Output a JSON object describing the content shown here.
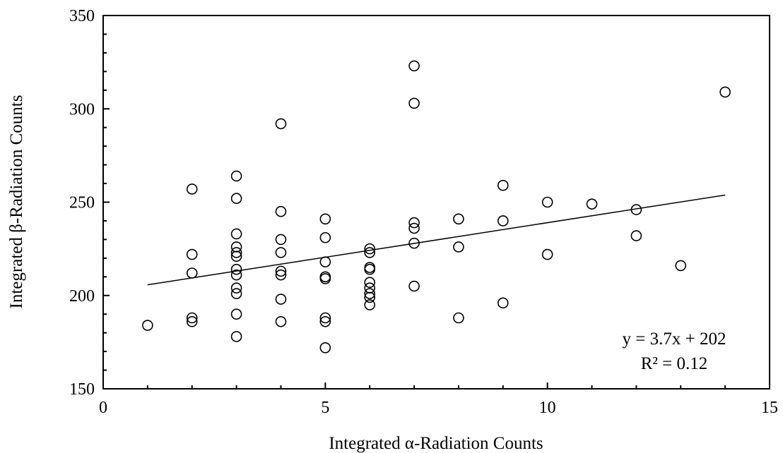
{
  "chart_data": {
    "type": "scatter",
    "title": "",
    "xlabel": "Integrated α-Radiation Counts",
    "ylabel": "Integrated β-Radiation Counts",
    "xlim": [
      0,
      15
    ],
    "ylim": [
      150,
      350
    ],
    "x_ticks": [
      "0",
      "5",
      "10",
      "15"
    ],
    "y_ticks": [
      "150",
      "200",
      "250",
      "300",
      "350"
    ],
    "grid": false,
    "marker": "open-circle",
    "points": [
      {
        "x": 1,
        "y": 184
      },
      {
        "x": 2,
        "y": 257
      },
      {
        "x": 2,
        "y": 222
      },
      {
        "x": 2,
        "y": 212
      },
      {
        "x": 2,
        "y": 188
      },
      {
        "x": 2,
        "y": 186
      },
      {
        "x": 3,
        "y": 264
      },
      {
        "x": 3,
        "y": 252
      },
      {
        "x": 3,
        "y": 233
      },
      {
        "x": 3,
        "y": 226
      },
      {
        "x": 3,
        "y": 223
      },
      {
        "x": 3,
        "y": 221
      },
      {
        "x": 3,
        "y": 214
      },
      {
        "x": 3,
        "y": 211
      },
      {
        "x": 3,
        "y": 204
      },
      {
        "x": 3,
        "y": 201
      },
      {
        "x": 3,
        "y": 190
      },
      {
        "x": 3,
        "y": 178
      },
      {
        "x": 4,
        "y": 292
      },
      {
        "x": 4,
        "y": 245
      },
      {
        "x": 4,
        "y": 230
      },
      {
        "x": 4,
        "y": 223
      },
      {
        "x": 4,
        "y": 213
      },
      {
        "x": 4,
        "y": 211
      },
      {
        "x": 4,
        "y": 198
      },
      {
        "x": 4,
        "y": 186
      },
      {
        "x": 5,
        "y": 241
      },
      {
        "x": 5,
        "y": 231
      },
      {
        "x": 5,
        "y": 218
      },
      {
        "x": 5,
        "y": 210
      },
      {
        "x": 5,
        "y": 209
      },
      {
        "x": 5,
        "y": 188
      },
      {
        "x": 5,
        "y": 186
      },
      {
        "x": 5,
        "y": 172
      },
      {
        "x": 6,
        "y": 225
      },
      {
        "x": 6,
        "y": 223
      },
      {
        "x": 6,
        "y": 215
      },
      {
        "x": 6,
        "y": 214
      },
      {
        "x": 6,
        "y": 207
      },
      {
        "x": 6,
        "y": 204
      },
      {
        "x": 6,
        "y": 201
      },
      {
        "x": 6,
        "y": 199
      },
      {
        "x": 6,
        "y": 195
      },
      {
        "x": 7,
        "y": 323
      },
      {
        "x": 7,
        "y": 303
      },
      {
        "x": 7,
        "y": 239
      },
      {
        "x": 7,
        "y": 236
      },
      {
        "x": 7,
        "y": 228
      },
      {
        "x": 7,
        "y": 205
      },
      {
        "x": 8,
        "y": 241
      },
      {
        "x": 8,
        "y": 226
      },
      {
        "x": 8,
        "y": 188
      },
      {
        "x": 9,
        "y": 259
      },
      {
        "x": 9,
        "y": 240
      },
      {
        "x": 9,
        "y": 196
      },
      {
        "x": 10,
        "y": 250
      },
      {
        "x": 10,
        "y": 222
      },
      {
        "x": 11,
        "y": 249
      },
      {
        "x": 12,
        "y": 246
      },
      {
        "x": 12,
        "y": 232
      },
      {
        "x": 13,
        "y": 216
      },
      {
        "x": 14,
        "y": 309
      }
    ],
    "trendline": {
      "slope": 3.7,
      "intercept": 202,
      "x_range": [
        1,
        14
      ]
    },
    "annotations": {
      "equation": "y = 3.7x + 202",
      "r_squared": "R² = 0.12"
    }
  }
}
